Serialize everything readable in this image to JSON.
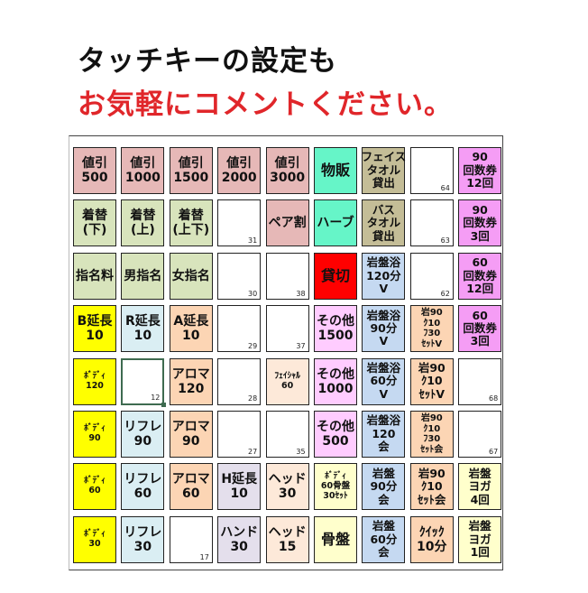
{
  "heading": {
    "line1": "タッチキーの設定も",
    "line2": "お気軽にコメントください。",
    "line2_color": "#e0262a"
  },
  "colors": {
    "discount": "#e6b8b7",
    "change": "#d8e4bc",
    "teal": "#66f5c8",
    "tan": "#c4bd97",
    "ticket": "#f59df5",
    "red": "#ff0000",
    "bath": "#c5d9f1",
    "body": "#ffff00",
    "reflex": "#daeef3",
    "aroma": "#fcd5b4",
    "hand": "#e4dfec",
    "head": "#fde9d9",
    "other": "#ffccff",
    "cream": "#ffffcc",
    "blank": "#ffffff"
  },
  "grid": [
    [
      {
        "t": [
          "値引",
          "500"
        ],
        "c": "discount"
      },
      {
        "t": [
          "値引",
          "1000"
        ],
        "c": "discount"
      },
      {
        "t": [
          "値引",
          "1500"
        ],
        "c": "discount"
      },
      {
        "t": [
          "値引",
          "2000"
        ],
        "c": "discount"
      },
      {
        "t": [
          "値引",
          "3000"
        ],
        "c": "discount"
      },
      {
        "t": [
          "物販"
        ],
        "c": "teal"
      },
      {
        "t": [
          "フェイス",
          "タオル",
          "貸出"
        ],
        "c": "tan"
      },
      {
        "t": [],
        "c": "blank",
        "n": "64"
      },
      {
        "t": [
          "90",
          "回数券",
          "12回"
        ],
        "c": "ticket"
      }
    ],
    [
      {
        "t": [
          "着替",
          "(下)"
        ],
        "c": "change"
      },
      {
        "t": [
          "着替",
          "(上)"
        ],
        "c": "change"
      },
      {
        "t": [
          "着替",
          "(上下)"
        ],
        "c": "change"
      },
      {
        "t": [],
        "c": "blank",
        "n": "31"
      },
      {
        "t": [
          "ペア割"
        ],
        "c": "discount"
      },
      {
        "t": [
          "ハーブ"
        ],
        "c": "teal"
      },
      {
        "t": [
          "バス",
          "タオル",
          "貸出"
        ],
        "c": "tan"
      },
      {
        "t": [],
        "c": "blank",
        "n": "63"
      },
      {
        "t": [
          "90",
          "回数券",
          "3回"
        ],
        "c": "ticket"
      }
    ],
    [
      {
        "t": [
          "指名料"
        ],
        "c": "change"
      },
      {
        "t": [
          "男指名"
        ],
        "c": "change"
      },
      {
        "t": [
          "女指名"
        ],
        "c": "change"
      },
      {
        "t": [],
        "c": "blank",
        "n": "30"
      },
      {
        "t": [],
        "c": "blank",
        "n": "38"
      },
      {
        "t": [
          "貸切"
        ],
        "c": "red"
      },
      {
        "t": [
          "岩盤浴",
          "120分",
          "V"
        ],
        "c": "bath"
      },
      {
        "t": [],
        "c": "blank",
        "n": "62"
      },
      {
        "t": [
          "60",
          "回数券",
          "12回"
        ],
        "c": "ticket"
      }
    ],
    [
      {
        "t": [
          "B延長",
          "10"
        ],
        "c": "body"
      },
      {
        "t": [
          "R延長",
          "10"
        ],
        "c": "reflex"
      },
      {
        "t": [
          "A延長",
          "10"
        ],
        "c": "aroma"
      },
      {
        "t": [],
        "c": "blank",
        "n": "29"
      },
      {
        "t": [],
        "c": "blank",
        "n": "37"
      },
      {
        "t": [
          "その他",
          "1500"
        ],
        "c": "other"
      },
      {
        "t": [
          "岩盤浴",
          "90分",
          "V"
        ],
        "c": "bath"
      },
      {
        "t": [
          "岩90",
          "ｸ10",
          "ﾌ30",
          "ｾｯﾄV"
        ],
        "c": "aroma"
      },
      {
        "t": [
          "60",
          "回数券",
          "3回"
        ],
        "c": "ticket"
      }
    ],
    [
      {
        "t": [
          "ﾎﾞﾃﾞｨ",
          "120"
        ],
        "c": "body"
      },
      {
        "t": [],
        "c": "blank",
        "n": "12",
        "sel": true
      },
      {
        "t": [
          "アロマ",
          "120"
        ],
        "c": "aroma"
      },
      {
        "t": [],
        "c": "blank",
        "n": "28"
      },
      {
        "t": [
          "ﾌｪｲｼｬﾙ",
          "60"
        ],
        "c": "head"
      },
      {
        "t": [
          "その他",
          "1000"
        ],
        "c": "other"
      },
      {
        "t": [
          "岩盤浴",
          "60分",
          "V"
        ],
        "c": "bath"
      },
      {
        "t": [
          "岩90",
          "ｸ10",
          "ｾｯﾄV"
        ],
        "c": "aroma"
      },
      {
        "t": [],
        "c": "blank",
        "n": "68"
      }
    ],
    [
      {
        "t": [
          "ﾎﾞﾃﾞｨ",
          "90"
        ],
        "c": "body"
      },
      {
        "t": [
          "リフレ",
          "90"
        ],
        "c": "reflex"
      },
      {
        "t": [
          "アロマ",
          "90"
        ],
        "c": "aroma"
      },
      {
        "t": [],
        "c": "blank",
        "n": "27"
      },
      {
        "t": [],
        "c": "blank",
        "n": "35"
      },
      {
        "t": [
          "その他",
          "500"
        ],
        "c": "other"
      },
      {
        "t": [
          "岩盤浴",
          "120",
          "会"
        ],
        "c": "bath"
      },
      {
        "t": [
          "岩90",
          "ｸ10",
          "ﾌ30",
          "ｾｯﾄ会"
        ],
        "c": "aroma"
      },
      {
        "t": [],
        "c": "blank",
        "n": "67"
      }
    ],
    [
      {
        "t": [
          "ﾎﾞﾃﾞｨ",
          "60"
        ],
        "c": "body"
      },
      {
        "t": [
          "リフレ",
          "60"
        ],
        "c": "reflex"
      },
      {
        "t": [
          "アロマ",
          "60"
        ],
        "c": "aroma"
      },
      {
        "t": [
          "H延長",
          "10"
        ],
        "c": "hand"
      },
      {
        "t": [
          "ヘッド",
          "30"
        ],
        "c": "head"
      },
      {
        "t": [
          "ﾎﾞﾃﾞｨ",
          "60骨盤",
          "30ｾｯﾄ"
        ],
        "c": "cream"
      },
      {
        "t": [
          "岩盤",
          "90分",
          "会"
        ],
        "c": "bath"
      },
      {
        "t": [
          "岩90",
          "ｸ10",
          "ｾｯﾄ会"
        ],
        "c": "aroma"
      },
      {
        "t": [
          "岩盤",
          "ヨガ",
          "4回"
        ],
        "c": "cream"
      }
    ],
    [
      {
        "t": [
          "ﾎﾞﾃﾞｨ",
          "30"
        ],
        "c": "body"
      },
      {
        "t": [
          "リフレ",
          "30"
        ],
        "c": "reflex"
      },
      {
        "t": [],
        "c": "blank",
        "n": "17"
      },
      {
        "t": [
          "ハンド",
          "30"
        ],
        "c": "hand"
      },
      {
        "t": [
          "ヘッド",
          "15"
        ],
        "c": "head"
      },
      {
        "t": [
          "骨盤"
        ],
        "c": "cream"
      },
      {
        "t": [
          "岩盤",
          "60分",
          "会"
        ],
        "c": "bath"
      },
      {
        "t": [
          "ｸｲｯｸ",
          "10分"
        ],
        "c": "aroma"
      },
      {
        "t": [
          "岩盤",
          "ヨガ",
          "1回"
        ],
        "c": "cream"
      }
    ]
  ]
}
